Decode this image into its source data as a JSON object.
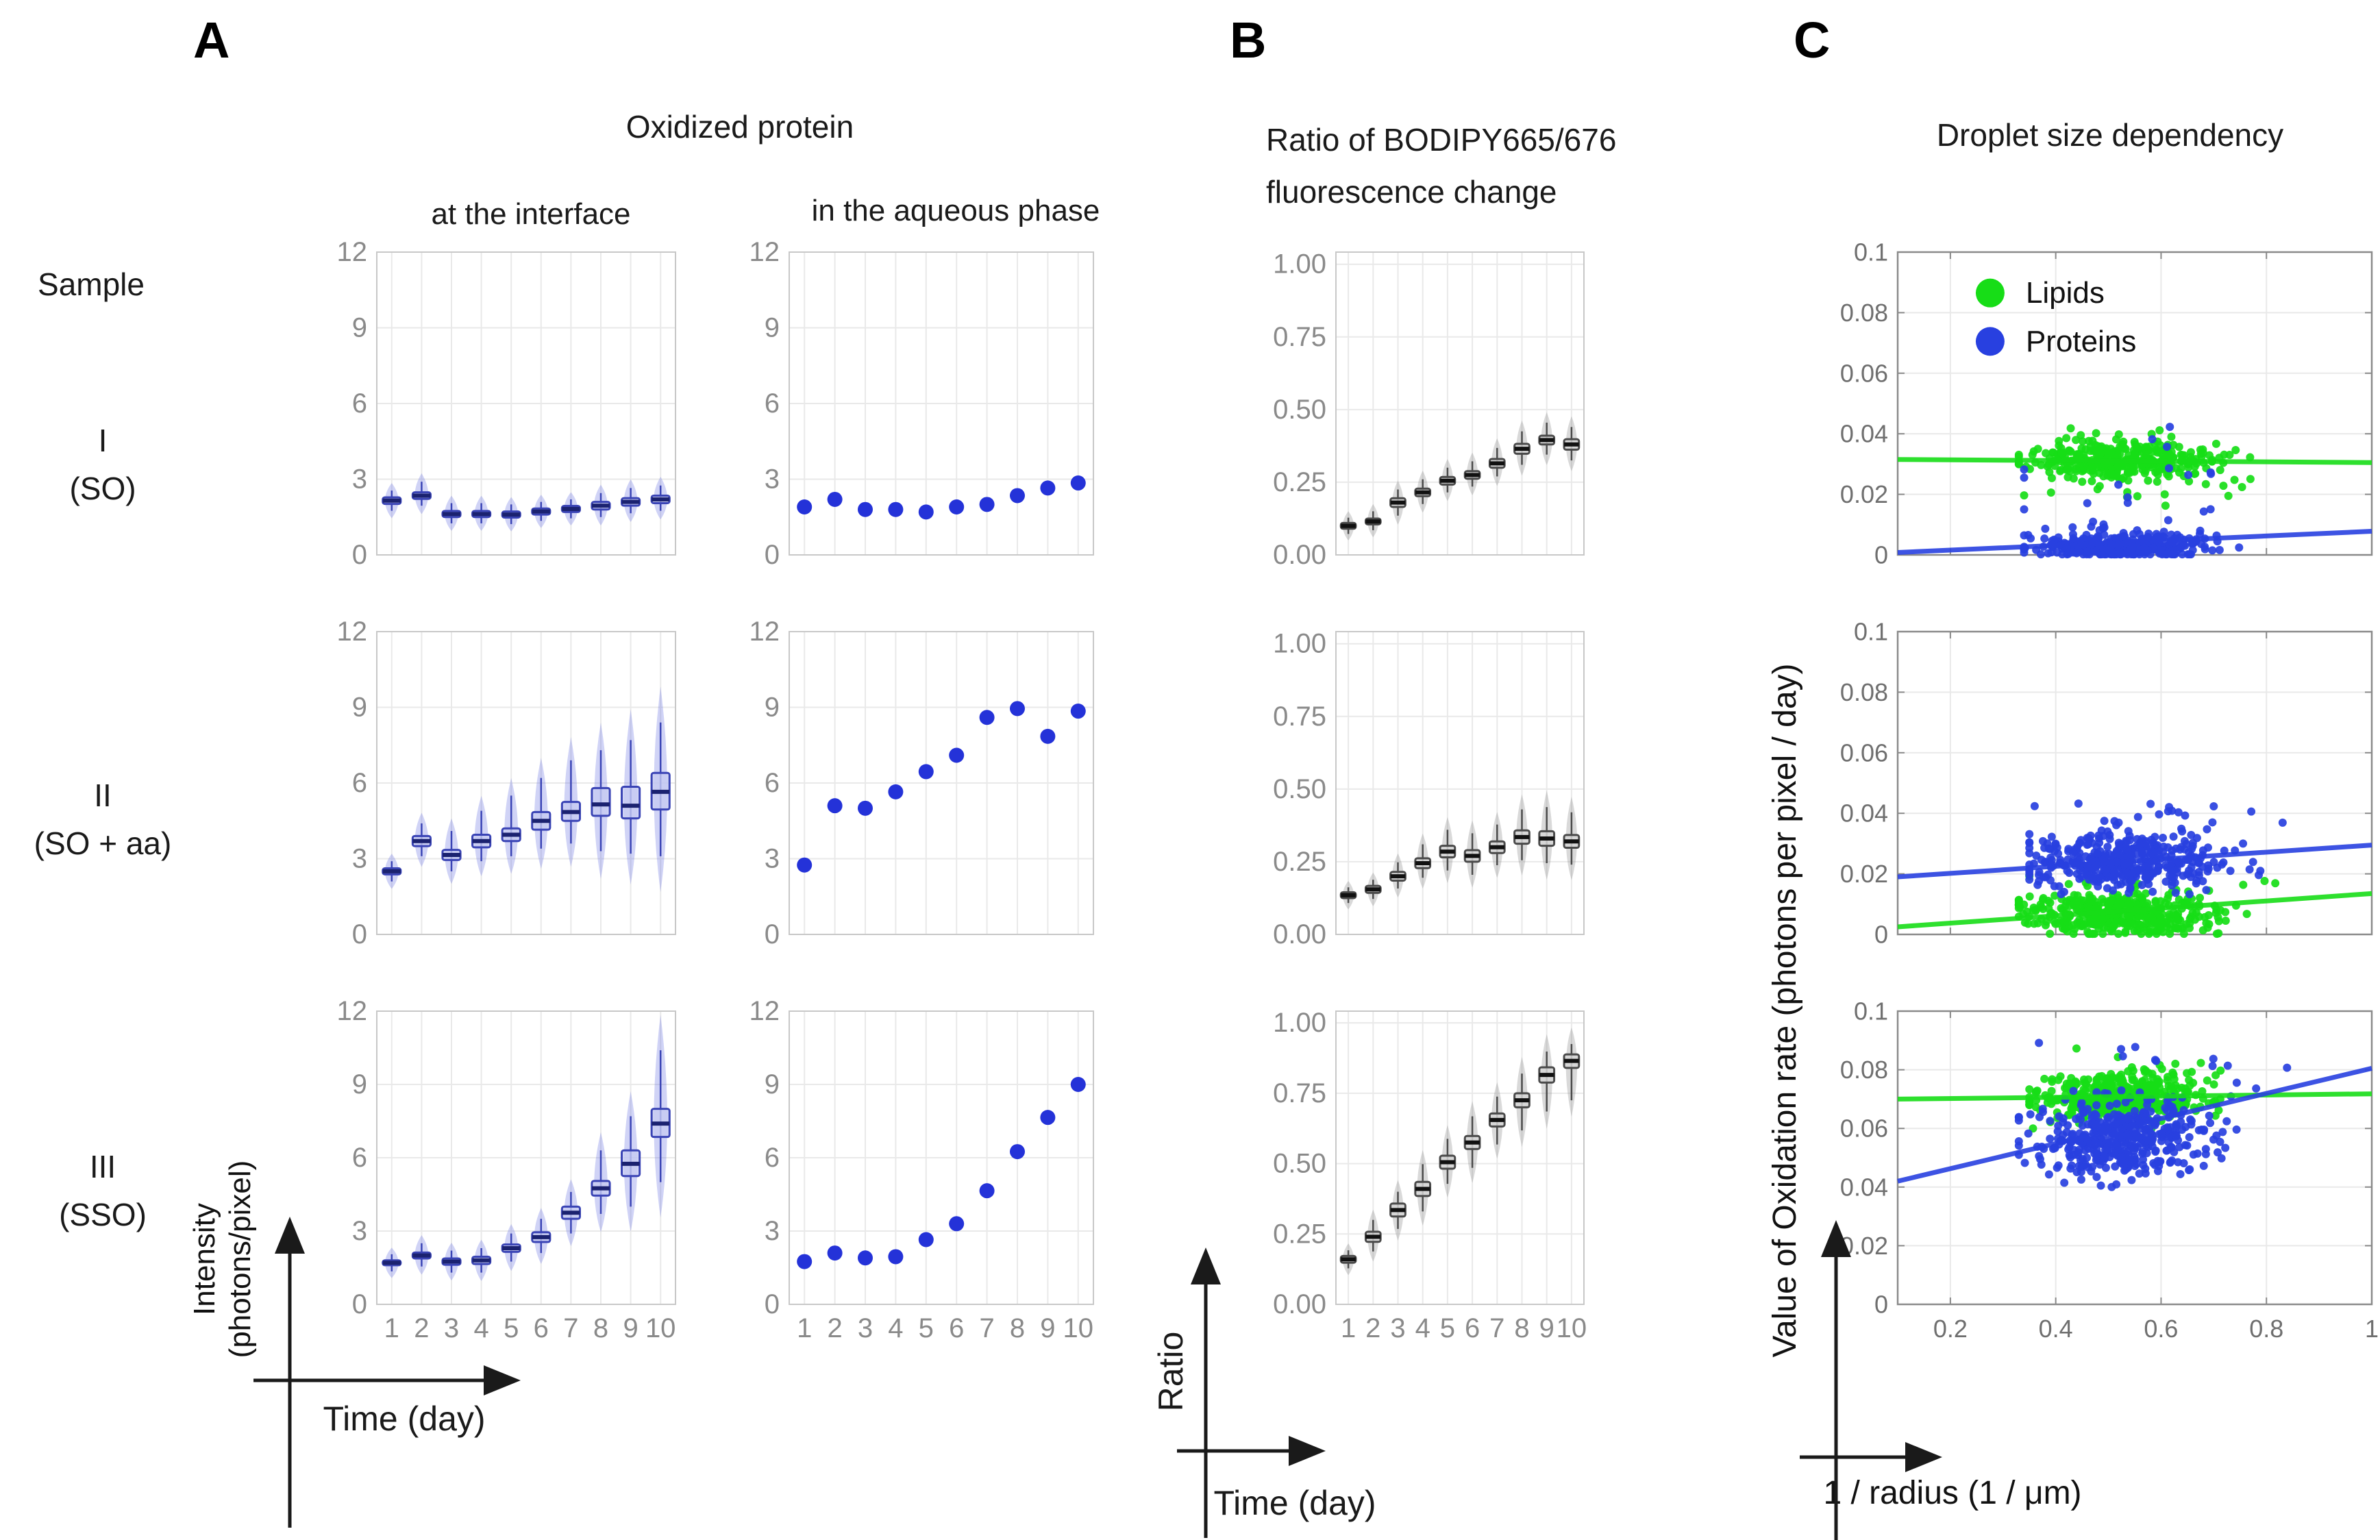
{
  "labels": {
    "panel_a_tag": "A",
    "panel_b_tag": "B",
    "panel_c_tag": "C",
    "a_title": "Oxidized protein",
    "a_col1": "at the interface",
    "a_col2": "in the aqueous phase",
    "b_title_1": "Ratio of BODIPY665/676",
    "b_title_2": "fluorescence change",
    "c_title": "Droplet size dependency",
    "sample_header": "Sample",
    "s1_line1": "I",
    "s1_line2": "(SO)",
    "s2_line1": "II",
    "s2_line2": "(SO + aa)",
    "s3_line1": "III",
    "s3_line2": "(SSO)",
    "a_ylabel_1": "Intensity",
    "a_ylabel_2": "(photons/pixel)",
    "a_xlabel": "Time (day)",
    "b_ylabel": "Ratio",
    "b_xlabel": "Time (day)",
    "c_ylabel": "Value of Oxidation rate (photons per pixel / day)",
    "c_xlabel": "1 / radius (1 / μm)"
  },
  "colors": {
    "blue_dot": "#2432d8",
    "blue_violin": "rgba(100,108,226,0.30)",
    "blue_box_fill": "rgba(198,202,243,0.80)",
    "blue_box_stroke": "#3a44b5",
    "blue_median": "#1b2270",
    "gray_violin": "rgba(128,128,128,0.30)",
    "gray_box_fill": "rgba(214,214,214,0.85)",
    "gray_box_stroke": "#4a4a4a",
    "gray_median": "#111111",
    "lipid_green": "#17dd17",
    "protein_blue": "#2840e0",
    "grid": "#e9e9e9",
    "frame_ab": "#c8c8c8",
    "frame_c": "#8a8a8a",
    "tick_text_ab": "#8a8a8a",
    "tick_text_c": "#6f6f6f",
    "arrow": "#1a1a1a"
  },
  "chart_data": [
    {
      "id": "A-interface-I",
      "type": "violinbox",
      "scheme": "blue",
      "title": "Oxidized protein at the interface, sample I (SO)",
      "categories": [
        1,
        2,
        3,
        4,
        5,
        6,
        7,
        8,
        9,
        10
      ],
      "ylim": [
        0,
        12
      ],
      "yticks": [
        0,
        3,
        6,
        9,
        12
      ],
      "ytick_labels": [
        "0",
        "3",
        "6",
        "9",
        "12"
      ],
      "show_xlabels": false,
      "med": [
        2.15,
        2.35,
        1.62,
        1.62,
        1.6,
        1.72,
        1.82,
        1.95,
        2.1,
        2.2
      ],
      "q1": [
        2.02,
        2.22,
        1.5,
        1.5,
        1.48,
        1.6,
        1.7,
        1.8,
        1.95,
        2.05
      ],
      "q3": [
        2.28,
        2.48,
        1.74,
        1.74,
        1.72,
        1.84,
        1.94,
        2.1,
        2.25,
        2.35
      ],
      "lo": [
        1.75,
        1.95,
        1.25,
        1.25,
        1.22,
        1.35,
        1.45,
        1.5,
        1.65,
        1.75
      ],
      "hi": [
        2.55,
        2.9,
        2.05,
        2.05,
        2.0,
        2.1,
        2.2,
        2.45,
        2.65,
        2.75
      ]
    },
    {
      "id": "A-aqueous-I",
      "type": "dots",
      "title": "Oxidized protein in the aqueous phase, sample I (SO)",
      "categories": [
        1,
        2,
        3,
        4,
        5,
        6,
        7,
        8,
        9,
        10
      ],
      "ylim": [
        0,
        12
      ],
      "yticks": [
        0,
        3,
        6,
        9,
        12
      ],
      "ytick_labels": [
        "0",
        "3",
        "6",
        "9",
        "12"
      ],
      "show_xlabels": false,
      "values": [
        1.9,
        2.2,
        1.8,
        1.8,
        1.7,
        1.9,
        2.0,
        2.35,
        2.65,
        2.85
      ]
    },
    {
      "id": "B-ratio-I",
      "type": "violinbox",
      "scheme": "gray",
      "title": "Ratio of BODIPY665/676 fluorescence change, sample I (SO)",
      "categories": [
        1,
        2,
        3,
        4,
        5,
        6,
        7,
        8,
        9,
        10
      ],
      "ylim": [
        0,
        1.0417
      ],
      "yticks": [
        0,
        0.25,
        0.5,
        0.75,
        1.0
      ],
      "ytick_labels": [
        "0.00",
        "0.25",
        "0.50",
        "0.75",
        "1.00"
      ],
      "show_xlabels": false,
      "med": [
        0.1,
        0.115,
        0.18,
        0.215,
        0.255,
        0.275,
        0.315,
        0.365,
        0.395,
        0.38
      ],
      "q1": [
        0.09,
        0.105,
        0.165,
        0.202,
        0.242,
        0.262,
        0.3,
        0.348,
        0.38,
        0.362
      ],
      "q3": [
        0.11,
        0.125,
        0.195,
        0.228,
        0.268,
        0.288,
        0.33,
        0.382,
        0.41,
        0.398
      ],
      "lo": [
        0.072,
        0.085,
        0.135,
        0.175,
        0.215,
        0.235,
        0.27,
        0.31,
        0.345,
        0.325
      ],
      "hi": [
        0.128,
        0.15,
        0.225,
        0.26,
        0.3,
        0.322,
        0.368,
        0.425,
        0.455,
        0.44
      ]
    },
    {
      "id": "C-droplet-I",
      "type": "scatter",
      "title": "Droplet size dependency, sample I (SO)",
      "xlim": [
        0.1,
        1
      ],
      "xticks": [
        0.2,
        0.4,
        0.6,
        0.8,
        1
      ],
      "xtick_labels": [
        "0.2",
        "0.4",
        "0.6",
        "0.8",
        "1"
      ],
      "ylim": [
        0,
        0.1
      ],
      "yticks": [
        0,
        0.02,
        0.04,
        0.06,
        0.08,
        0.1
      ],
      "ytick_labels": [
        "0",
        "0.02",
        "0.04",
        "0.06",
        "0.08",
        "0.1"
      ],
      "show_xlabels": false,
      "legend": [
        {
          "label": "Lipids",
          "color": "#17dd17"
        },
        {
          "label": "Proteins",
          "color": "#2840e0"
        }
      ],
      "series": [
        {
          "name": "Lipids",
          "color": "#17dd17",
          "trend": [
            0.0315,
            0.0305
          ],
          "seed": 11,
          "cluster": {
            "n": 380,
            "cx": 0.53,
            "sx": 0.085,
            "clipx": [
              0.33,
              0.97
            ],
            "cy": 0.0315,
            "sy": 0.0035,
            "clipy": [
              0.02,
              0.046
            ]
          },
          "outliers": {
            "n": 18,
            "cx": 0.55,
            "sx": 0.12,
            "clipx": [
              0.34,
              0.98
            ],
            "cy": 0.025,
            "sy": 0.004,
            "clipy": [
              0.016,
              0.045
            ]
          }
        },
        {
          "name": "Proteins",
          "color": "#2840e0",
          "trend": [
            0.0008,
            0.0078
          ],
          "seed": 12,
          "cluster": {
            "n": 380,
            "cx": 0.52,
            "sx": 0.08,
            "clipx": [
              0.34,
              0.95
            ],
            "cy": 0.003,
            "sy": 0.0022,
            "clipy": [
              0.0002,
              0.012
            ]
          },
          "outliers": {
            "n": 22,
            "cx": 0.55,
            "sx": 0.12,
            "clipx": [
              0.34,
              0.97
            ],
            "cy": 0.016,
            "sy": 0.009,
            "clipy": [
              0.004,
              0.045
            ]
          }
        }
      ]
    },
    {
      "id": "A-interface-II",
      "type": "violinbox",
      "scheme": "blue",
      "title": "Oxidized protein at the interface, sample II (SO + aa)",
      "categories": [
        1,
        2,
        3,
        4,
        5,
        6,
        7,
        8,
        9,
        10
      ],
      "ylim": [
        0,
        12
      ],
      "yticks": [
        0,
        3,
        6,
        9,
        12
      ],
      "ytick_labels": [
        "0",
        "3",
        "6",
        "9",
        "12"
      ],
      "show_xlabels": false,
      "med": [
        2.5,
        3.7,
        3.15,
        3.7,
        3.95,
        4.5,
        4.85,
        5.15,
        5.1,
        5.65
      ],
      "q1": [
        2.38,
        3.5,
        2.95,
        3.45,
        3.7,
        4.15,
        4.5,
        4.7,
        4.6,
        4.95
      ],
      "q3": [
        2.62,
        3.9,
        3.35,
        3.95,
        4.2,
        4.85,
        5.25,
        5.8,
        5.85,
        6.4
      ],
      "lo": [
        2.1,
        3.1,
        2.5,
        2.9,
        3.1,
        3.4,
        3.6,
        3.3,
        3.2,
        3.1
      ],
      "hi": [
        2.9,
        4.4,
        4.1,
        4.9,
        5.5,
        6.2,
        6.9,
        7.3,
        7.7,
        8.4
      ]
    },
    {
      "id": "A-aqueous-II",
      "type": "dots",
      "title": "Oxidized protein in the aqueous phase, sample II (SO + aa)",
      "categories": [
        1,
        2,
        3,
        4,
        5,
        6,
        7,
        8,
        9,
        10
      ],
      "ylim": [
        0,
        12
      ],
      "yticks": [
        0,
        3,
        6,
        9,
        12
      ],
      "ytick_labels": [
        "0",
        "3",
        "6",
        "9",
        "12"
      ],
      "show_xlabels": false,
      "values": [
        2.75,
        5.1,
        5.0,
        5.65,
        6.45,
        7.1,
        8.6,
        8.95,
        7.85,
        8.85
      ]
    },
    {
      "id": "B-ratio-II",
      "type": "violinbox",
      "scheme": "gray",
      "title": "Ratio of BODIPY665/676 fluorescence change, sample II (SO + aa)",
      "categories": [
        1,
        2,
        3,
        4,
        5,
        6,
        7,
        8,
        9,
        10
      ],
      "ylim": [
        0,
        1.0417
      ],
      "yticks": [
        0,
        0.25,
        0.5,
        0.75,
        1.0
      ],
      "ytick_labels": [
        "0.00",
        "0.25",
        "0.50",
        "0.75",
        "1.00"
      ],
      "show_xlabels": false,
      "med": [
        0.135,
        0.155,
        0.2,
        0.245,
        0.285,
        0.27,
        0.3,
        0.335,
        0.33,
        0.32
      ],
      "q1": [
        0.125,
        0.143,
        0.185,
        0.228,
        0.265,
        0.25,
        0.28,
        0.312,
        0.305,
        0.298
      ],
      "q3": [
        0.145,
        0.167,
        0.215,
        0.262,
        0.305,
        0.29,
        0.32,
        0.358,
        0.355,
        0.342
      ],
      "lo": [
        0.108,
        0.122,
        0.158,
        0.195,
        0.22,
        0.205,
        0.238,
        0.255,
        0.245,
        0.24
      ],
      "hi": [
        0.162,
        0.188,
        0.248,
        0.31,
        0.36,
        0.348,
        0.378,
        0.43,
        0.438,
        0.42
      ]
    },
    {
      "id": "C-droplet-II",
      "type": "scatter",
      "title": "Droplet size dependency, sample II (SO + aa)",
      "xlim": [
        0.1,
        1
      ],
      "xticks": [
        0.2,
        0.4,
        0.6,
        0.8,
        1
      ],
      "xtick_labels": [
        "0.2",
        "0.4",
        "0.6",
        "0.8",
        "1"
      ],
      "ylim": [
        0,
        0.1
      ],
      "yticks": [
        0,
        0.02,
        0.04,
        0.06,
        0.08,
        0.1
      ],
      "ytick_labels": [
        "0",
        "0.02",
        "0.04",
        "0.06",
        "0.08",
        "0.1"
      ],
      "show_xlabels": false,
      "series": [
        {
          "name": "Lipids",
          "color": "#17dd17",
          "trend": [
            0.0025,
            0.0135
          ],
          "seed": 21,
          "cluster": {
            "n": 420,
            "cx": 0.52,
            "sx": 0.09,
            "clipx": [
              0.33,
              0.97
            ],
            "cy": 0.0065,
            "sy": 0.0035,
            "clipy": [
              0.0002,
              0.016
            ]
          },
          "outliers": {
            "n": 14,
            "cx": 0.6,
            "sx": 0.13,
            "clipx": [
              0.35,
              0.98
            ],
            "cy": 0.015,
            "sy": 0.0035,
            "clipy": [
              0.01,
              0.025
            ]
          }
        },
        {
          "name": "Proteins",
          "color": "#2840e0",
          "trend": [
            0.019,
            0.0295
          ],
          "seed": 22,
          "cluster": {
            "n": 420,
            "cx": 0.53,
            "sx": 0.09,
            "clipx": [
              0.35,
              0.97
            ],
            "cy": 0.024,
            "sy": 0.0045,
            "clipy": [
              0.012,
              0.04
            ]
          },
          "outliers": {
            "n": 16,
            "cx": 0.6,
            "sx": 0.12,
            "clipx": [
              0.36,
              0.97
            ],
            "cy": 0.04,
            "sy": 0.003,
            "clipy": [
              0.032,
              0.046
            ]
          }
        }
      ]
    },
    {
      "id": "A-interface-III",
      "type": "violinbox",
      "scheme": "blue",
      "title": "Oxidized protein at the interface, sample III (SSO)",
      "categories": [
        1,
        2,
        3,
        4,
        5,
        6,
        7,
        8,
        9,
        10
      ],
      "ylim": [
        0,
        12
      ],
      "yticks": [
        0,
        3,
        6,
        9,
        12
      ],
      "ytick_labels": [
        "0",
        "3",
        "6",
        "9",
        "12"
      ],
      "show_xlabels": true,
      "xtick_labels": [
        "1",
        "2",
        "3",
        "4",
        "5",
        "6",
        "7",
        "8",
        "9",
        "10"
      ],
      "med": [
        1.7,
        2.0,
        1.75,
        1.8,
        2.3,
        2.75,
        3.75,
        4.75,
        5.75,
        7.4
      ],
      "q1": [
        1.6,
        1.88,
        1.62,
        1.65,
        2.15,
        2.55,
        3.5,
        4.45,
        5.25,
        6.85
      ],
      "q3": [
        1.8,
        2.12,
        1.88,
        1.95,
        2.45,
        2.95,
        4.0,
        5.05,
        6.3,
        8.0
      ],
      "lo": [
        1.35,
        1.55,
        1.3,
        1.3,
        1.75,
        2.1,
        2.9,
        3.7,
        4.0,
        5.0
      ],
      "hi": [
        2.05,
        2.5,
        2.2,
        2.3,
        2.9,
        3.5,
        4.6,
        6.3,
        7.7,
        10.4
      ]
    },
    {
      "id": "A-aqueous-III",
      "type": "dots",
      "title": "Oxidized protein in the aqueous phase, sample III (SSO)",
      "categories": [
        1,
        2,
        3,
        4,
        5,
        6,
        7,
        8,
        9,
        10
      ],
      "ylim": [
        0,
        12
      ],
      "yticks": [
        0,
        3,
        6,
        9,
        12
      ],
      "ytick_labels": [
        "0",
        "3",
        "6",
        "9",
        "12"
      ],
      "show_xlabels": true,
      "xtick_labels": [
        "1",
        "2",
        "3",
        "4",
        "5",
        "6",
        "7",
        "8",
        "9",
        "10"
      ],
      "values": [
        1.75,
        2.1,
        1.9,
        1.95,
        2.65,
        3.3,
        4.65,
        6.25,
        7.65,
        9.0
      ]
    },
    {
      "id": "B-ratio-III",
      "type": "violinbox",
      "scheme": "gray",
      "title": "Ratio of BODIPY665/676 fluorescence change, sample III (SSO)",
      "categories": [
        1,
        2,
        3,
        4,
        5,
        6,
        7,
        8,
        9,
        10
      ],
      "ylim": [
        0,
        1.0417
      ],
      "yticks": [
        0,
        0.25,
        0.5,
        0.75,
        1.0
      ],
      "ytick_labels": [
        "0.00",
        "0.25",
        "0.50",
        "0.75",
        "1.00"
      ],
      "show_xlabels": true,
      "xtick_labels": [
        "1",
        "2",
        "3",
        "4",
        "5",
        "6",
        "7",
        "8",
        "9",
        "10"
      ],
      "med": [
        0.16,
        0.24,
        0.335,
        0.41,
        0.505,
        0.575,
        0.655,
        0.725,
        0.815,
        0.865
      ],
      "q1": [
        0.148,
        0.222,
        0.312,
        0.385,
        0.482,
        0.552,
        0.632,
        0.7,
        0.788,
        0.84
      ],
      "q3": [
        0.172,
        0.258,
        0.358,
        0.435,
        0.528,
        0.598,
        0.678,
        0.75,
        0.842,
        0.888
      ],
      "lo": [
        0.128,
        0.188,
        0.268,
        0.33,
        0.428,
        0.485,
        0.568,
        0.618,
        0.685,
        0.725
      ],
      "hi": [
        0.192,
        0.3,
        0.4,
        0.498,
        0.588,
        0.668,
        0.738,
        0.82,
        0.898,
        0.925
      ]
    },
    {
      "id": "C-droplet-III",
      "type": "scatter",
      "title": "Droplet size dependency, sample III (SSO)",
      "xlim": [
        0.1,
        1
      ],
      "xticks": [
        0.2,
        0.4,
        0.6,
        0.8,
        1
      ],
      "xtick_labels": [
        "0.2",
        "0.4",
        "0.6",
        "0.8",
        "1"
      ],
      "ylim": [
        0,
        0.1
      ],
      "yticks": [
        0,
        0.02,
        0.04,
        0.06,
        0.08,
        0.1
      ],
      "ytick_labels": [
        "0",
        "0.02",
        "0.04",
        "0.06",
        "0.08",
        "0.1"
      ],
      "show_xlabels": true,
      "series": [
        {
          "name": "Lipids",
          "color": "#17dd17",
          "trend": [
            0.07,
            0.0718
          ],
          "seed": 31,
          "cluster": {
            "n": 430,
            "cx": 0.52,
            "sx": 0.075,
            "clipx": [
              0.35,
              0.9
            ],
            "cy": 0.071,
            "sy": 0.0038,
            "clipy": [
              0.06,
              0.085
            ]
          },
          "outliers": {
            "n": 10,
            "cx": 0.6,
            "sx": 0.1,
            "clipx": [
              0.36,
              0.92
            ],
            "cy": 0.08,
            "sy": 0.003,
            "clipy": [
              0.075,
              0.09
            ]
          }
        },
        {
          "name": "Proteins",
          "color": "#2840e0",
          "trend": [
            0.042,
            0.0805
          ],
          "seed": 32,
          "cluster": {
            "n": 430,
            "cx": 0.53,
            "sx": 0.085,
            "clipx": [
              0.33,
              0.9
            ],
            "cy": 0.057,
            "sy": 0.0062,
            "clipy": [
              0.04,
              0.08
            ]
          },
          "outliers": {
            "n": 12,
            "cx": 0.6,
            "sx": 0.12,
            "clipx": [
              0.35,
              0.92
            ],
            "cy": 0.082,
            "sy": 0.005,
            "clipy": [
              0.07,
              0.092
            ]
          }
        }
      ]
    }
  ]
}
